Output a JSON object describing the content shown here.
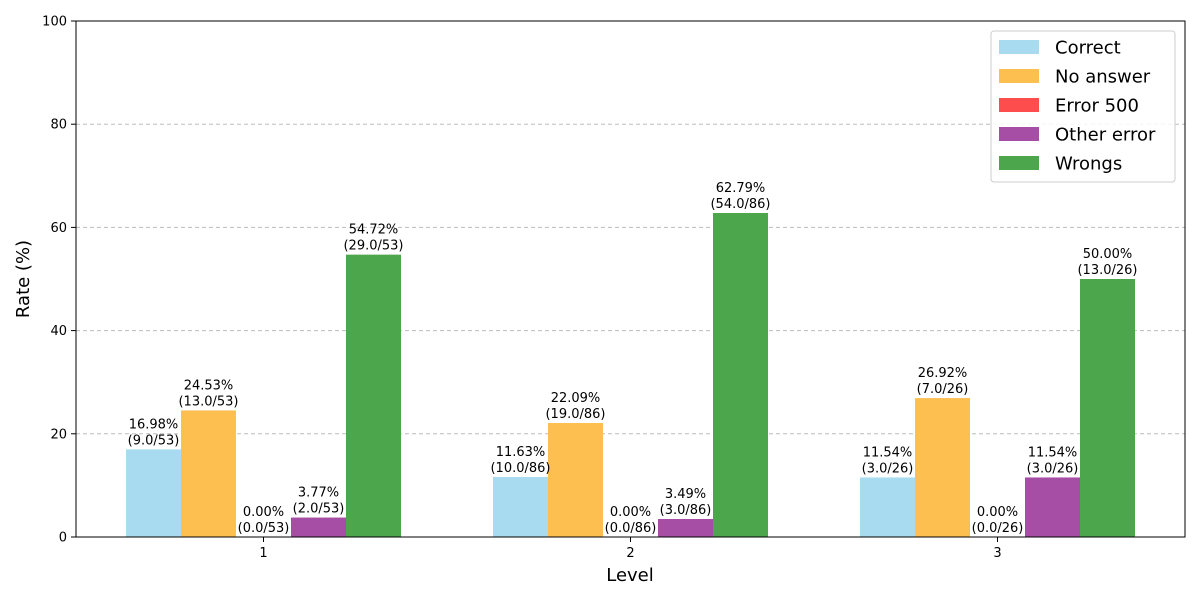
{
  "chart_data": {
    "type": "bar",
    "title": "",
    "xlabel": "Level",
    "ylabel": "Rate (%)",
    "ylim": [
      0,
      100
    ],
    "yticks": [
      0,
      20,
      40,
      60,
      80,
      100
    ],
    "grid": "y-dashed",
    "legend_position": "top-right",
    "categories": [
      "1",
      "2",
      "3"
    ],
    "series": [
      {
        "name": "Correct",
        "color": "#a8dbef",
        "values": [
          16.98,
          11.63,
          11.54
        ],
        "labels": [
          [
            "16.98%",
            "(9.0/53)"
          ],
          [
            "11.63%",
            "(10.0/86)"
          ],
          [
            "11.54%",
            "(3.0/26)"
          ]
        ]
      },
      {
        "name": "No answer",
        "color": "#fdbf4f",
        "values": [
          24.53,
          22.09,
          26.92
        ],
        "labels": [
          [
            "24.53%",
            "(13.0/53)"
          ],
          [
            "22.09%",
            "(19.0/86)"
          ],
          [
            "26.92%",
            "(7.0/26)"
          ]
        ]
      },
      {
        "name": "Error 500",
        "color": "#fd4d4d",
        "values": [
          0.0,
          0.0,
          0.0
        ],
        "labels": [
          [
            "0.00%",
            "(0.0/53)"
          ],
          [
            "0.00%",
            "(0.0/86)"
          ],
          [
            "0.00%",
            "(0.0/26)"
          ]
        ]
      },
      {
        "name": "Other error",
        "color": "#a64ea6",
        "values": [
          3.77,
          3.49,
          11.54
        ],
        "labels": [
          [
            "3.77%",
            "(2.0/53)"
          ],
          [
            "3.49%",
            "(3.0/86)"
          ],
          [
            "11.54%",
            "(3.0/26)"
          ]
        ]
      },
      {
        "name": "Wrongs",
        "color": "#4ca64c",
        "values": [
          54.72,
          62.79,
          50.0
        ],
        "labels": [
          [
            "54.72%",
            "(29.0/53)"
          ],
          [
            "62.79%",
            "(54.0/86)"
          ],
          [
            "50.00%",
            "(13.0/26)"
          ]
        ]
      }
    ]
  }
}
